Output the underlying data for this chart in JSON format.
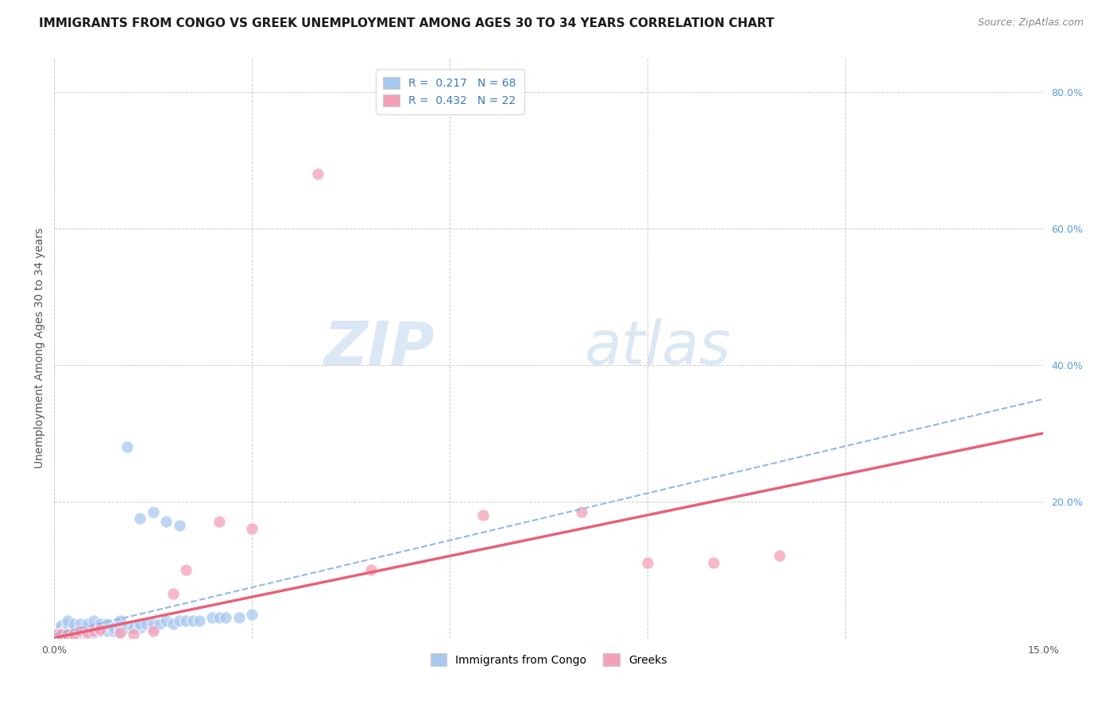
{
  "title": "IMMIGRANTS FROM CONGO VS GREEK UNEMPLOYMENT AMONG AGES 30 TO 34 YEARS CORRELATION CHART",
  "source": "Source: ZipAtlas.com",
  "ylabel": "Unemployment Among Ages 30 to 34 years",
  "xlim": [
    0.0,
    0.15
  ],
  "ylim": [
    0.0,
    0.85
  ],
  "x_tick_positions": [
    0.0,
    0.03,
    0.06,
    0.09,
    0.12,
    0.15
  ],
  "x_tick_labels": [
    "0.0%",
    "",
    "",
    "",
    "",
    "15.0%"
  ],
  "y_tick_positions": [
    0.0,
    0.2,
    0.4,
    0.6,
    0.8
  ],
  "y_tick_labels_right": [
    "",
    "20.0%",
    "40.0%",
    "60.0%",
    "80.0%"
  ],
  "color_blue": "#a8c8f0",
  "color_pink": "#f4a0b8",
  "line_blue_color": "#90b8e8",
  "line_pink_color": "#e8607a",
  "watermark_zip": "ZIP",
  "watermark_atlas": "atlas",
  "blue_scatter_x": [
    0.0005,
    0.0008,
    0.001,
    0.001,
    0.001,
    0.001,
    0.001,
    0.001,
    0.0015,
    0.0015,
    0.002,
    0.002,
    0.002,
    0.002,
    0.002,
    0.002,
    0.002,
    0.002,
    0.003,
    0.003,
    0.003,
    0.003,
    0.003,
    0.004,
    0.004,
    0.004,
    0.004,
    0.005,
    0.005,
    0.005,
    0.005,
    0.006,
    0.006,
    0.006,
    0.007,
    0.007,
    0.007,
    0.008,
    0.008,
    0.009,
    0.009,
    0.01,
    0.01,
    0.01,
    0.011,
    0.011,
    0.012,
    0.013,
    0.013,
    0.014,
    0.015,
    0.015,
    0.016,
    0.017,
    0.018,
    0.019,
    0.02,
    0.021,
    0.022,
    0.024,
    0.025,
    0.026,
    0.028,
    0.03,
    0.013,
    0.015,
    0.017,
    0.019
  ],
  "blue_scatter_y": [
    0.005,
    0.005,
    0.005,
    0.008,
    0.01,
    0.012,
    0.015,
    0.018,
    0.005,
    0.01,
    0.005,
    0.008,
    0.01,
    0.012,
    0.015,
    0.018,
    0.02,
    0.025,
    0.005,
    0.008,
    0.01,
    0.015,
    0.02,
    0.005,
    0.01,
    0.015,
    0.02,
    0.005,
    0.01,
    0.015,
    0.02,
    0.008,
    0.015,
    0.025,
    0.01,
    0.015,
    0.02,
    0.01,
    0.02,
    0.01,
    0.015,
    0.01,
    0.015,
    0.025,
    0.015,
    0.28,
    0.015,
    0.015,
    0.02,
    0.02,
    0.015,
    0.02,
    0.02,
    0.025,
    0.02,
    0.025,
    0.025,
    0.025,
    0.025,
    0.03,
    0.03,
    0.03,
    0.03,
    0.035,
    0.175,
    0.185,
    0.17,
    0.165
  ],
  "pink_scatter_x": [
    0.0005,
    0.001,
    0.002,
    0.003,
    0.004,
    0.005,
    0.006,
    0.007,
    0.01,
    0.012,
    0.015,
    0.018,
    0.02,
    0.025,
    0.03,
    0.04,
    0.048,
    0.065,
    0.08,
    0.09,
    0.1,
    0.11
  ],
  "pink_scatter_y": [
    0.005,
    0.005,
    0.005,
    0.005,
    0.01,
    0.008,
    0.01,
    0.012,
    0.008,
    0.005,
    0.01,
    0.065,
    0.1,
    0.17,
    0.16,
    0.68,
    0.1,
    0.18,
    0.185,
    0.11,
    0.11,
    0.12
  ],
  "blue_line_x": [
    0.0,
    0.15
  ],
  "blue_line_y": [
    0.005,
    0.35
  ],
  "pink_line_x": [
    0.0,
    0.15
  ],
  "pink_line_y": [
    0.0,
    0.3
  ],
  "title_fontsize": 11,
  "source_fontsize": 9,
  "axis_label_fontsize": 10,
  "tick_fontsize": 9,
  "legend_fontsize": 10,
  "watermark_fontsize": 55,
  "background_color": "#ffffff",
  "grid_color": "#cccccc"
}
